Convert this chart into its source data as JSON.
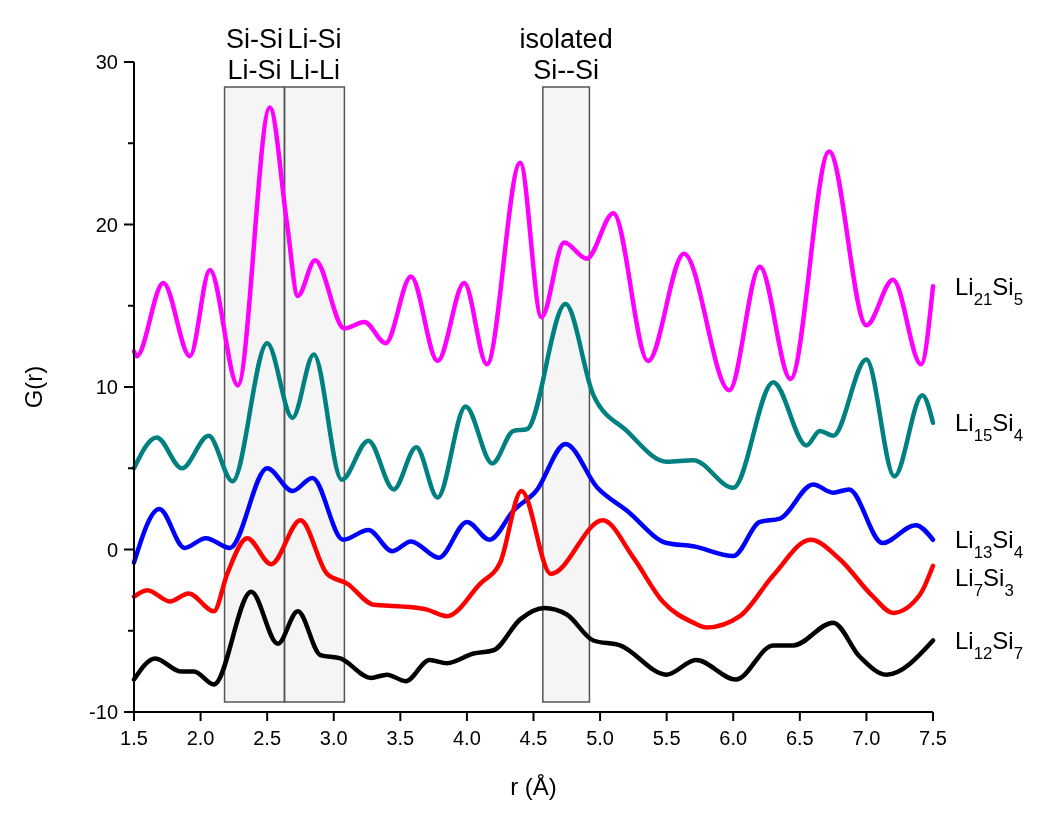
{
  "chart_data": {
    "type": "line",
    "xlabel": "r (Å)",
    "ylabel": "G(r)",
    "xlim": [
      1.5,
      7.5
    ],
    "ylim": [
      -10,
      30
    ],
    "xticks": [
      1.5,
      {
        "value": 2,
        "label": "2.0"
      },
      2.5,
      {
        "value": 3,
        "label": "3.0"
      },
      3.5,
      {
        "value": 4,
        "label": "4.0"
      },
      4.5,
      {
        "value": 5,
        "label": "5.0"
      },
      5.5,
      {
        "value": 6,
        "label": "6.0"
      },
      6.5,
      {
        "value": 7,
        "label": "7.0"
      },
      7.5
    ],
    "yticks": [
      -10,
      {
        "value": -5,
        "label": null
      },
      0,
      {
        "value": 5,
        "label": null
      },
      10,
      {
        "value": 15,
        "label": null
      },
      20,
      {
        "value": 25,
        "label": null
      },
      30
    ],
    "grid": false,
    "line_style": "solid",
    "bands": [
      {
        "axis": "x",
        "from": 2.18,
        "to": 2.63,
        "label": "Si-Si\nLi-Si",
        "color": "#555555"
      },
      {
        "axis": "x",
        "from": 2.63,
        "to": 3.08,
        "label": "Li-Si\nLi-Li",
        "color": "#555555"
      },
      {
        "axis": "x",
        "from": 4.57,
        "to": 4.92,
        "label": "isolated\nSi--Si",
        "color": "#555555"
      }
    ],
    "series": [
      {
        "name": "Li$_{21}$Si$_{5}$",
        "color": "#ff00ff",
        "x": [
          1.5,
          1.52,
          1.72,
          1.92,
          2.07,
          2.28,
          2.52,
          2.65,
          2.73,
          2.86,
          3.08,
          3.23,
          3.39,
          3.58,
          3.78,
          3.98,
          4.15,
          4.4,
          4.56,
          4.73,
          4.9,
          5.1,
          5.36,
          5.63,
          5.97,
          6.2,
          6.43,
          6.72,
          7.0,
          7.2,
          7.41,
          7.5
        ],
        "values": [
          12.2,
          11.9,
          16.4,
          11.9,
          17.2,
          10.1,
          27.2,
          20,
          15.6,
          17.8,
          13.6,
          14.0,
          12.7,
          16.8,
          11.6,
          16.4,
          11.4,
          23.8,
          14.3,
          18.9,
          17.9,
          20.7,
          11.6,
          18.2,
          9.8,
          17.4,
          10.5,
          24.5,
          13.8,
          16.6,
          11.4,
          16.2
        ]
      },
      {
        "name": "Li$_{15}$Si$_{4}$",
        "color": "#008080",
        "x": [
          1.5,
          1.67,
          1.86,
          2.06,
          2.24,
          2.5,
          2.69,
          2.85,
          3.06,
          3.26,
          3.45,
          3.62,
          3.78,
          3.99,
          4.19,
          4.35,
          4.45,
          4.74,
          4.95,
          5.2,
          5.5,
          5.7,
          6.0,
          6.3,
          6.55,
          6.65,
          6.75,
          7.0,
          7.21,
          7.42,
          7.5
        ],
        "values": [
          5.0,
          6.9,
          5.0,
          7.0,
          4.2,
          12.7,
          8.1,
          12.0,
          4.3,
          6.7,
          3.7,
          6.3,
          3.2,
          8.8,
          5.3,
          7.3,
          7.4,
          15.1,
          9.5,
          7.3,
          5.4,
          5.5,
          3.8,
          10.3,
          6.4,
          7.3,
          7.0,
          11.7,
          4.5,
          9.5,
          7.8
        ]
      },
      {
        "name": "Li$_{13}$Si$_{4}$",
        "color": "#0000ff",
        "x": [
          1.5,
          1.69,
          1.88,
          2.04,
          2.22,
          2.5,
          2.69,
          2.84,
          3.07,
          3.26,
          3.44,
          3.58,
          3.79,
          4.0,
          4.17,
          4.35,
          4.52,
          4.74,
          4.98,
          5.2,
          5.5,
          5.7,
          6.0,
          6.2,
          6.35,
          6.6,
          6.75,
          6.87,
          7.12,
          7.37,
          7.5
        ],
        "values": [
          -0.8,
          2.5,
          0.1,
          0.7,
          0.1,
          5.0,
          3.6,
          4.4,
          0.6,
          1.2,
          -0.1,
          0.5,
          -0.5,
          1.7,
          0.6,
          2.4,
          3.6,
          6.5,
          3.8,
          2.4,
          0.4,
          0.2,
          -0.4,
          1.7,
          1.9,
          4.0,
          3.5,
          3.7,
          0.4,
          1.5,
          0.6
        ]
      },
      {
        "name": "Li$_{7}$Si$_{3}$",
        "color": "#ff0000",
        "x": [
          1.5,
          1.6,
          1.77,
          1.91,
          2.1,
          2.2,
          2.35,
          2.53,
          2.75,
          2.95,
          3.1,
          3.3,
          3.5,
          3.7,
          3.85,
          4.1,
          4.25,
          4.41,
          4.63,
          5.02,
          5.25,
          5.47,
          5.7,
          5.8,
          6.05,
          6.3,
          6.58,
          6.8,
          7.05,
          7.2,
          7.4,
          7.5
        ],
        "values": [
          -2.9,
          -2.5,
          -3.2,
          -2.7,
          -3.8,
          -1.5,
          0.7,
          -0.9,
          1.8,
          -1.5,
          -2.1,
          -3.4,
          -3.5,
          -3.7,
          -4.1,
          -2.1,
          -0.8,
          3.6,
          -1.5,
          1.8,
          -0.5,
          -3.2,
          -4.5,
          -4.8,
          -4.1,
          -1.6,
          0.6,
          -0.6,
          -2.9,
          -3.9,
          -2.8,
          -1.0
        ]
      },
      {
        "name": "Li$_{12}$Si$_{7}$",
        "color": "#000000",
        "x": [
          1.5,
          1.66,
          1.85,
          1.95,
          2.1,
          2.38,
          2.58,
          2.73,
          2.9,
          3.05,
          3.28,
          3.4,
          3.54,
          3.72,
          3.85,
          4.05,
          4.2,
          4.4,
          4.58,
          4.75,
          4.95,
          5.15,
          5.5,
          5.72,
          6.02,
          6.3,
          6.45,
          6.75,
          6.95,
          7.15,
          7.5
        ],
        "values": [
          -8.0,
          -6.7,
          -7.5,
          -7.5,
          -8.3,
          -2.6,
          -5.8,
          -3.8,
          -6.5,
          -6.7,
          -7.9,
          -7.7,
          -8.1,
          -6.8,
          -7.0,
          -6.4,
          -6.2,
          -4.3,
          -3.6,
          -4.0,
          -5.6,
          -5.9,
          -7.7,
          -6.8,
          -8.0,
          -5.9,
          -5.9,
          -4.5,
          -6.6,
          -7.7,
          -5.6
        ]
      }
    ]
  }
}
